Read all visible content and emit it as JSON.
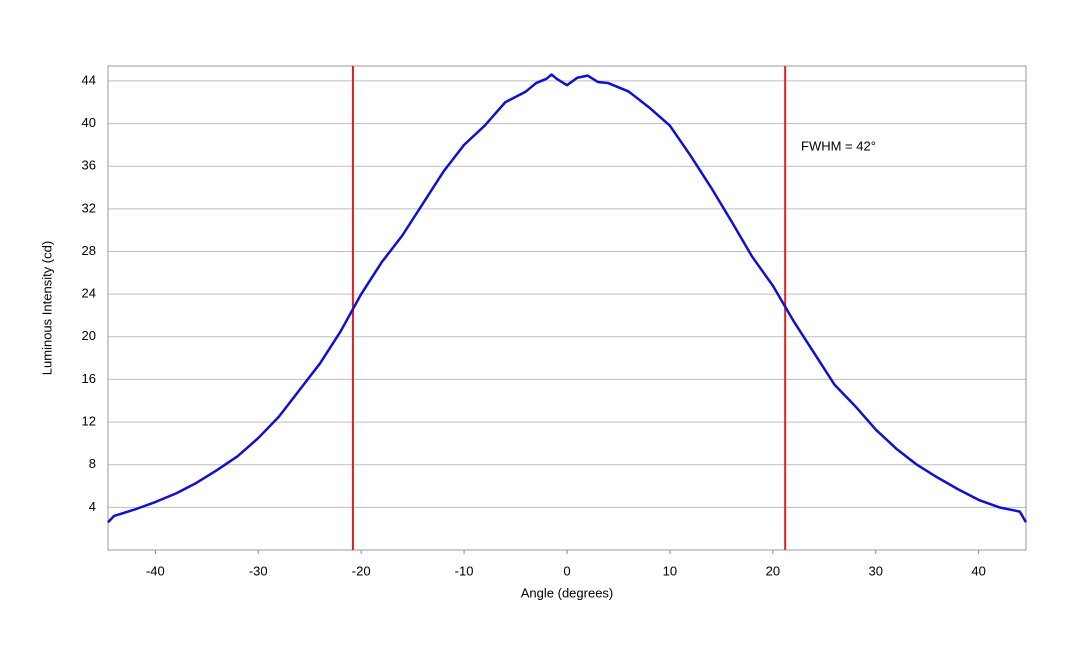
{
  "chart_data": {
    "type": "line",
    "xlabel": "Angle (degrees)",
    "ylabel": "Luminous Intensity (cd)",
    "x": [
      -44.6,
      -44,
      -42,
      -40,
      -38,
      -36,
      -34,
      -32,
      -30,
      -28,
      -26,
      -24,
      -22,
      -20,
      -18,
      -16,
      -14,
      -12,
      -10,
      -8,
      -6,
      -4,
      -3,
      -2,
      -1.5,
      -1,
      0,
      1,
      2,
      3,
      4,
      6,
      8,
      10,
      12,
      14,
      16,
      18,
      20,
      22,
      24,
      26,
      28,
      30,
      32,
      34,
      36,
      38,
      40,
      42,
      44,
      44.6
    ],
    "series": [
      {
        "name": "Luminous Intensity",
        "color": "#1010d0",
        "values": [
          2.6,
          3.2,
          3.8,
          4.5,
          5.3,
          6.3,
          7.5,
          8.8,
          10.5,
          12.5,
          15,
          17.5,
          20.5,
          24,
          27,
          29.5,
          32.5,
          35.5,
          38,
          39.8,
          42,
          43,
          43.8,
          44.2,
          44.6,
          44.2,
          43.6,
          44.3,
          44.5,
          43.9,
          43.8,
          43,
          41.5,
          39.8,
          37,
          34,
          30.8,
          27.5,
          24.8,
          21.5,
          18.5,
          15.5,
          13.5,
          11.3,
          9.5,
          8,
          6.8,
          5.7,
          4.7,
          4,
          3.6,
          2.6
        ]
      }
    ],
    "vlines": [
      -20.8,
      21.2
    ],
    "vline_color": "#e02020",
    "annotation": "FWHM = 42°",
    "xlim": [
      -44.6,
      44.6
    ],
    "xticks": [
      -40,
      -30,
      -20,
      -10,
      0,
      10,
      20,
      30,
      40
    ],
    "ylim": [
      0,
      45.4
    ],
    "yticks": [
      4,
      8,
      12,
      16,
      20,
      24,
      28,
      32,
      36,
      40,
      44
    ],
    "grid": true
  }
}
